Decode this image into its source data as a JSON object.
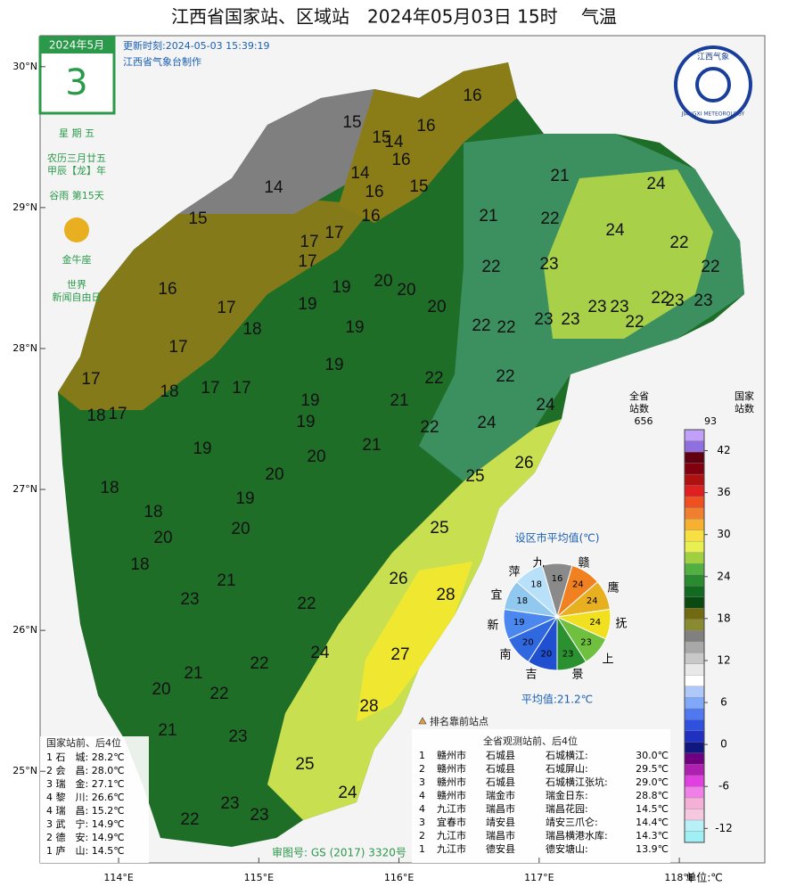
{
  "header": {
    "title": "江西省国家站、区域站　2024年05月03日 15时　 气温",
    "update": "更新时刻:2024-05-03 15:39:19",
    "maker": "江西省气象台制作",
    "logo_cn": "江西气象",
    "logo_en": "JIANGXI METEOROLOGY",
    "approval": "审图号: GS (2017) 3320号"
  },
  "calendar": {
    "month": "2024年5月",
    "day": "3",
    "weekday": "星 期 五",
    "lunar": "农历三月廿五",
    "ganzhi": "甲辰【龙】年",
    "term": "谷雨 第15天",
    "zodiac": "金牛座",
    "festival1": "世界",
    "festival2": "新闻自由日"
  },
  "chart_data": {
    "type": "map",
    "xlim": [
      113.44,
      118.61
    ],
    "ylim": [
      24.35,
      30.22
    ],
    "xticks": [
      {
        "value": 114,
        "label": "114°E"
      },
      {
        "value": 115,
        "label": "115°E"
      },
      {
        "value": 116,
        "label": "116°E"
      },
      {
        "value": 117,
        "label": "117°E"
      },
      {
        "value": 118,
        "label": "118°E"
      }
    ],
    "yticks": [
      {
        "value": 25,
        "label": "25°N"
      },
      {
        "value": 26,
        "label": "26°N"
      },
      {
        "value": 27,
        "label": "27°N"
      },
      {
        "value": 28,
        "label": "28°N"
      },
      {
        "value": 29,
        "label": "29°N"
      },
      {
        "value": 30,
        "label": "30°N"
      }
    ],
    "stations": [
      16,
      15,
      15,
      14,
      16,
      16,
      14,
      16,
      15,
      14,
      15,
      16,
      21,
      21,
      22,
      24,
      24,
      22,
      22,
      17,
      17,
      17,
      16,
      19,
      20,
      20,
      22,
      23,
      17,
      19,
      20,
      23,
      23,
      23,
      23,
      22,
      23,
      23,
      22,
      22,
      22,
      18,
      19,
      17,
      19,
      17,
      18,
      17,
      17,
      22,
      22,
      21,
      18,
      17,
      19,
      19,
      22,
      24,
      24,
      21,
      19,
      20,
      26,
      20,
      25,
      18,
      19,
      18,
      20,
      25,
      20,
      18,
      21,
      26,
      23,
      22,
      28,
      24,
      27,
      22,
      21,
      20,
      22,
      28,
      23,
      21,
      25,
      24,
      23,
      23,
      22
    ],
    "colorbar": {
      "label_all": "全省",
      "label_all2": "站数",
      "count_all": "656",
      "label_nat": "国家",
      "label_nat2": "站数",
      "count_nat": "93",
      "unit": "单位:℃",
      "lim": [
        -14,
        45
      ],
      "ticks": [
        42,
        36,
        30,
        24,
        18,
        12,
        6,
        0,
        -6,
        -12
      ],
      "colors": [
        "#9ef0f5",
        "#b8f0f8",
        "#f5c8e0",
        "#f5b0d8",
        "#f080e8",
        "#e040e0",
        "#b020b0",
        "#700080",
        "#101880",
        "#2030c0",
        "#3050e0",
        "#5078f0",
        "#80a8f8",
        "#b0c8f8",
        "#ffffff",
        "#e8e8e8",
        "#c8c8c8",
        "#a8a8a8",
        "#808080",
        "#8a8a30",
        "#706a10",
        "#0a4a10",
        "#106a20",
        "#2a8a30",
        "#50b040",
        "#a0d040",
        "#e8f050",
        "#f8e040",
        "#f8b030",
        "#f08030",
        "#f05020",
        "#e02020",
        "#b01010",
        "#800010",
        "#600010",
        "#9070e0",
        "#c0a0f8"
      ]
    },
    "pie": {
      "title": "设区市平均值(℃)",
      "average": "平均值:21.2℃",
      "slices": [
        {
          "name": "九",
          "value": 16,
          "color": "#8a8a8a"
        },
        {
          "name": "赣",
          "value": 24,
          "color": "#f08020"
        },
        {
          "name": "鹰",
          "value": 24,
          "color": "#e8b020"
        },
        {
          "name": "抚",
          "value": 24,
          "color": "#f0e020"
        },
        {
          "name": "上",
          "value": 23,
          "color": "#70c040"
        },
        {
          "name": "景",
          "value": 23,
          "color": "#2a9030"
        },
        {
          "name": "吉",
          "value": 20,
          "color": "#2050d0"
        },
        {
          "name": "南",
          "value": 20,
          "color": "#3068e0"
        },
        {
          "name": "新",
          "value": 19,
          "color": "#4a88f0"
        },
        {
          "name": "宜",
          "value": 18,
          "color": "#90c8f0"
        },
        {
          "name": "萍",
          "value": 18,
          "color": "#b8e0f8"
        }
      ]
    },
    "marker_legend": "排名靠前站点"
  },
  "table_national": {
    "title": "国家站前、后4位",
    "rows": [
      "1 石　城: 28.2℃",
      "2 会　昌: 28.0℃",
      "3 瑞　金: 27.1℃",
      "4 黎　川: 26.6℃",
      "4 瑞　昌: 15.2℃",
      "3 武　宁: 14.9℃",
      "2 德　安: 14.9℃",
      "1 庐　山: 14.5℃"
    ]
  },
  "table_all": {
    "title": "全省观测站前、后4位",
    "rows": [
      [
        "1",
        "赣州市",
        "石城县",
        "石城横江:",
        "30.0℃"
      ],
      [
        "2",
        "赣州市",
        "石城县",
        "石城屏山:",
        "29.5℃"
      ],
      [
        "3",
        "赣州市",
        "石城县",
        "石城横江张坑:",
        "29.0℃"
      ],
      [
        "4",
        "赣州市",
        "瑞金市",
        "瑞金日东:",
        "28.8℃"
      ],
      [
        "4",
        "九江市",
        "瑞昌市",
        "瑞昌花园:",
        "14.5℃"
      ],
      [
        "3",
        "宜春市",
        "靖安县",
        "靖安三爪仑:",
        "14.4℃"
      ],
      [
        "2",
        "九江市",
        "瑞昌市",
        "瑞昌横港水库:",
        "14.3℃"
      ],
      [
        "1",
        "九江市",
        "德安县",
        "德安塘山:",
        "13.9℃"
      ]
    ]
  }
}
